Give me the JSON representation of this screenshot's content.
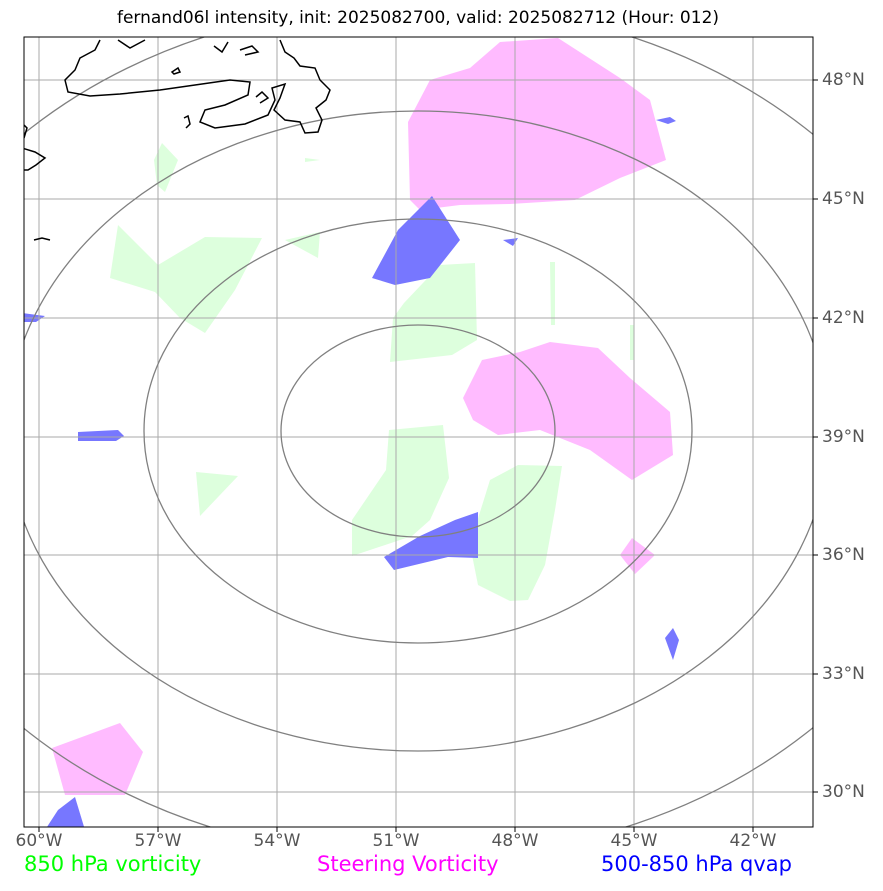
{
  "title": "fernand06l intensity, init: 2025082700, valid: 2025082712 (Hour: 012)",
  "axes": {
    "lon_ticks": [
      "60°W",
      "57°W",
      "54°W",
      "51°W",
      "48°W",
      "45°W",
      "42°W"
    ],
    "lat_ticks": [
      "48°N",
      "45°N",
      "42°N",
      "39°N",
      "36°N",
      "33°N",
      "30°N"
    ]
  },
  "legend": [
    {
      "label": "850 hPa vorticity",
      "color": "#00ff00"
    },
    {
      "label": "Steering Vorticity",
      "color": "#ff00ff"
    },
    {
      "label": "500-850 hPa qvap",
      "color": "#0000ff"
    }
  ],
  "colors": {
    "vorticity_850_fill": "#ddffdd",
    "steering_fill": "#ffbbff",
    "qvap_fill": "#7777ff",
    "grid": "#aaaaaa",
    "range_rings": "#808080",
    "coastline": "#000000"
  }
}
